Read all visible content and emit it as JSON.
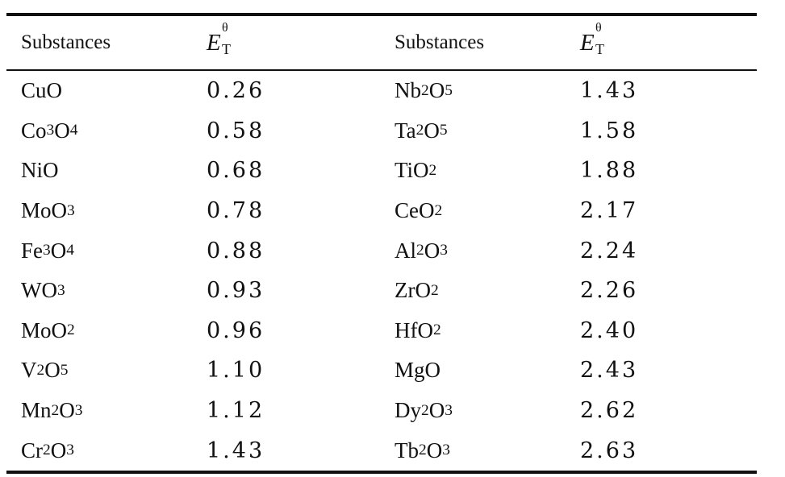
{
  "table": {
    "headers": {
      "substances": "Substances",
      "symbol": "E",
      "symbol_sup": "θ",
      "symbol_sub": "T"
    },
    "rows": [
      {
        "left": {
          "base": "CuO",
          "parts": [
            {
              "t": "CuO"
            }
          ]
        },
        "left_value": "0.26",
        "right": {
          "parts": [
            {
              "t": "Nb"
            },
            {
              "s": "2"
            },
            {
              "t": "O"
            },
            {
              "s": "5"
            }
          ]
        },
        "right_value": "1.43"
      },
      {
        "left": {
          "parts": [
            {
              "t": "Co"
            },
            {
              "s": "3"
            },
            {
              "t": "O"
            },
            {
              "s": "4"
            }
          ]
        },
        "left_value": "0.58",
        "right": {
          "parts": [
            {
              "t": "Ta"
            },
            {
              "s": "2"
            },
            {
              "t": "O"
            },
            {
              "s": "5"
            }
          ]
        },
        "right_value": "1.58"
      },
      {
        "left": {
          "parts": [
            {
              "t": "NiO"
            }
          ]
        },
        "left_value": "0.68",
        "right": {
          "parts": [
            {
              "t": "TiO"
            },
            {
              "s": "2"
            }
          ]
        },
        "right_value": "1.88"
      },
      {
        "left": {
          "parts": [
            {
              "t": "MoO"
            },
            {
              "s": "3"
            }
          ]
        },
        "left_value": "0.78",
        "right": {
          "parts": [
            {
              "t": "CeO"
            },
            {
              "s": "2"
            }
          ]
        },
        "right_value": "2.17"
      },
      {
        "left": {
          "parts": [
            {
              "t": "Fe"
            },
            {
              "s": "3"
            },
            {
              "t": "O"
            },
            {
              "s": "4"
            }
          ]
        },
        "left_value": "0.88",
        "right": {
          "parts": [
            {
              "t": "Al"
            },
            {
              "s": "2"
            },
            {
              "t": "O"
            },
            {
              "s": "3"
            }
          ]
        },
        "right_value": "2.24"
      },
      {
        "left": {
          "parts": [
            {
              "t": "WO"
            },
            {
              "s": "3"
            }
          ]
        },
        "left_value": "0.93",
        "right": {
          "parts": [
            {
              "t": "ZrO"
            },
            {
              "s": "2"
            }
          ]
        },
        "right_value": "2.26"
      },
      {
        "left": {
          "parts": [
            {
              "t": "MoO"
            },
            {
              "s": "2"
            }
          ]
        },
        "left_value": "0.96",
        "right": {
          "parts": [
            {
              "t": "HfO"
            },
            {
              "s": "2"
            }
          ]
        },
        "right_value": "2.40"
      },
      {
        "left": {
          "parts": [
            {
              "t": "V"
            },
            {
              "s": "2"
            },
            {
              "t": "O"
            },
            {
              "s": "5"
            }
          ]
        },
        "left_value": "1.10",
        "right": {
          "parts": [
            {
              "t": "MgO"
            }
          ]
        },
        "right_value": "2.43"
      },
      {
        "left": {
          "parts": [
            {
              "t": "Mn"
            },
            {
              "s": "2"
            },
            {
              "t": "O"
            },
            {
              "s": "3"
            }
          ]
        },
        "left_value": "1.12",
        "right": {
          "parts": [
            {
              "t": "Dy"
            },
            {
              "s": "2"
            },
            {
              "t": "O"
            },
            {
              "s": "3"
            }
          ]
        },
        "right_value": "2.62"
      },
      {
        "left": {
          "parts": [
            {
              "t": "Cr"
            },
            {
              "s": "2"
            },
            {
              "t": "O"
            },
            {
              "s": "3"
            }
          ]
        },
        "left_value": "1.43",
        "right": {
          "parts": [
            {
              "t": "Tb"
            },
            {
              "s": "2"
            },
            {
              "t": "O"
            },
            {
              "s": "3"
            }
          ]
        },
        "right_value": "2.63"
      }
    ]
  }
}
